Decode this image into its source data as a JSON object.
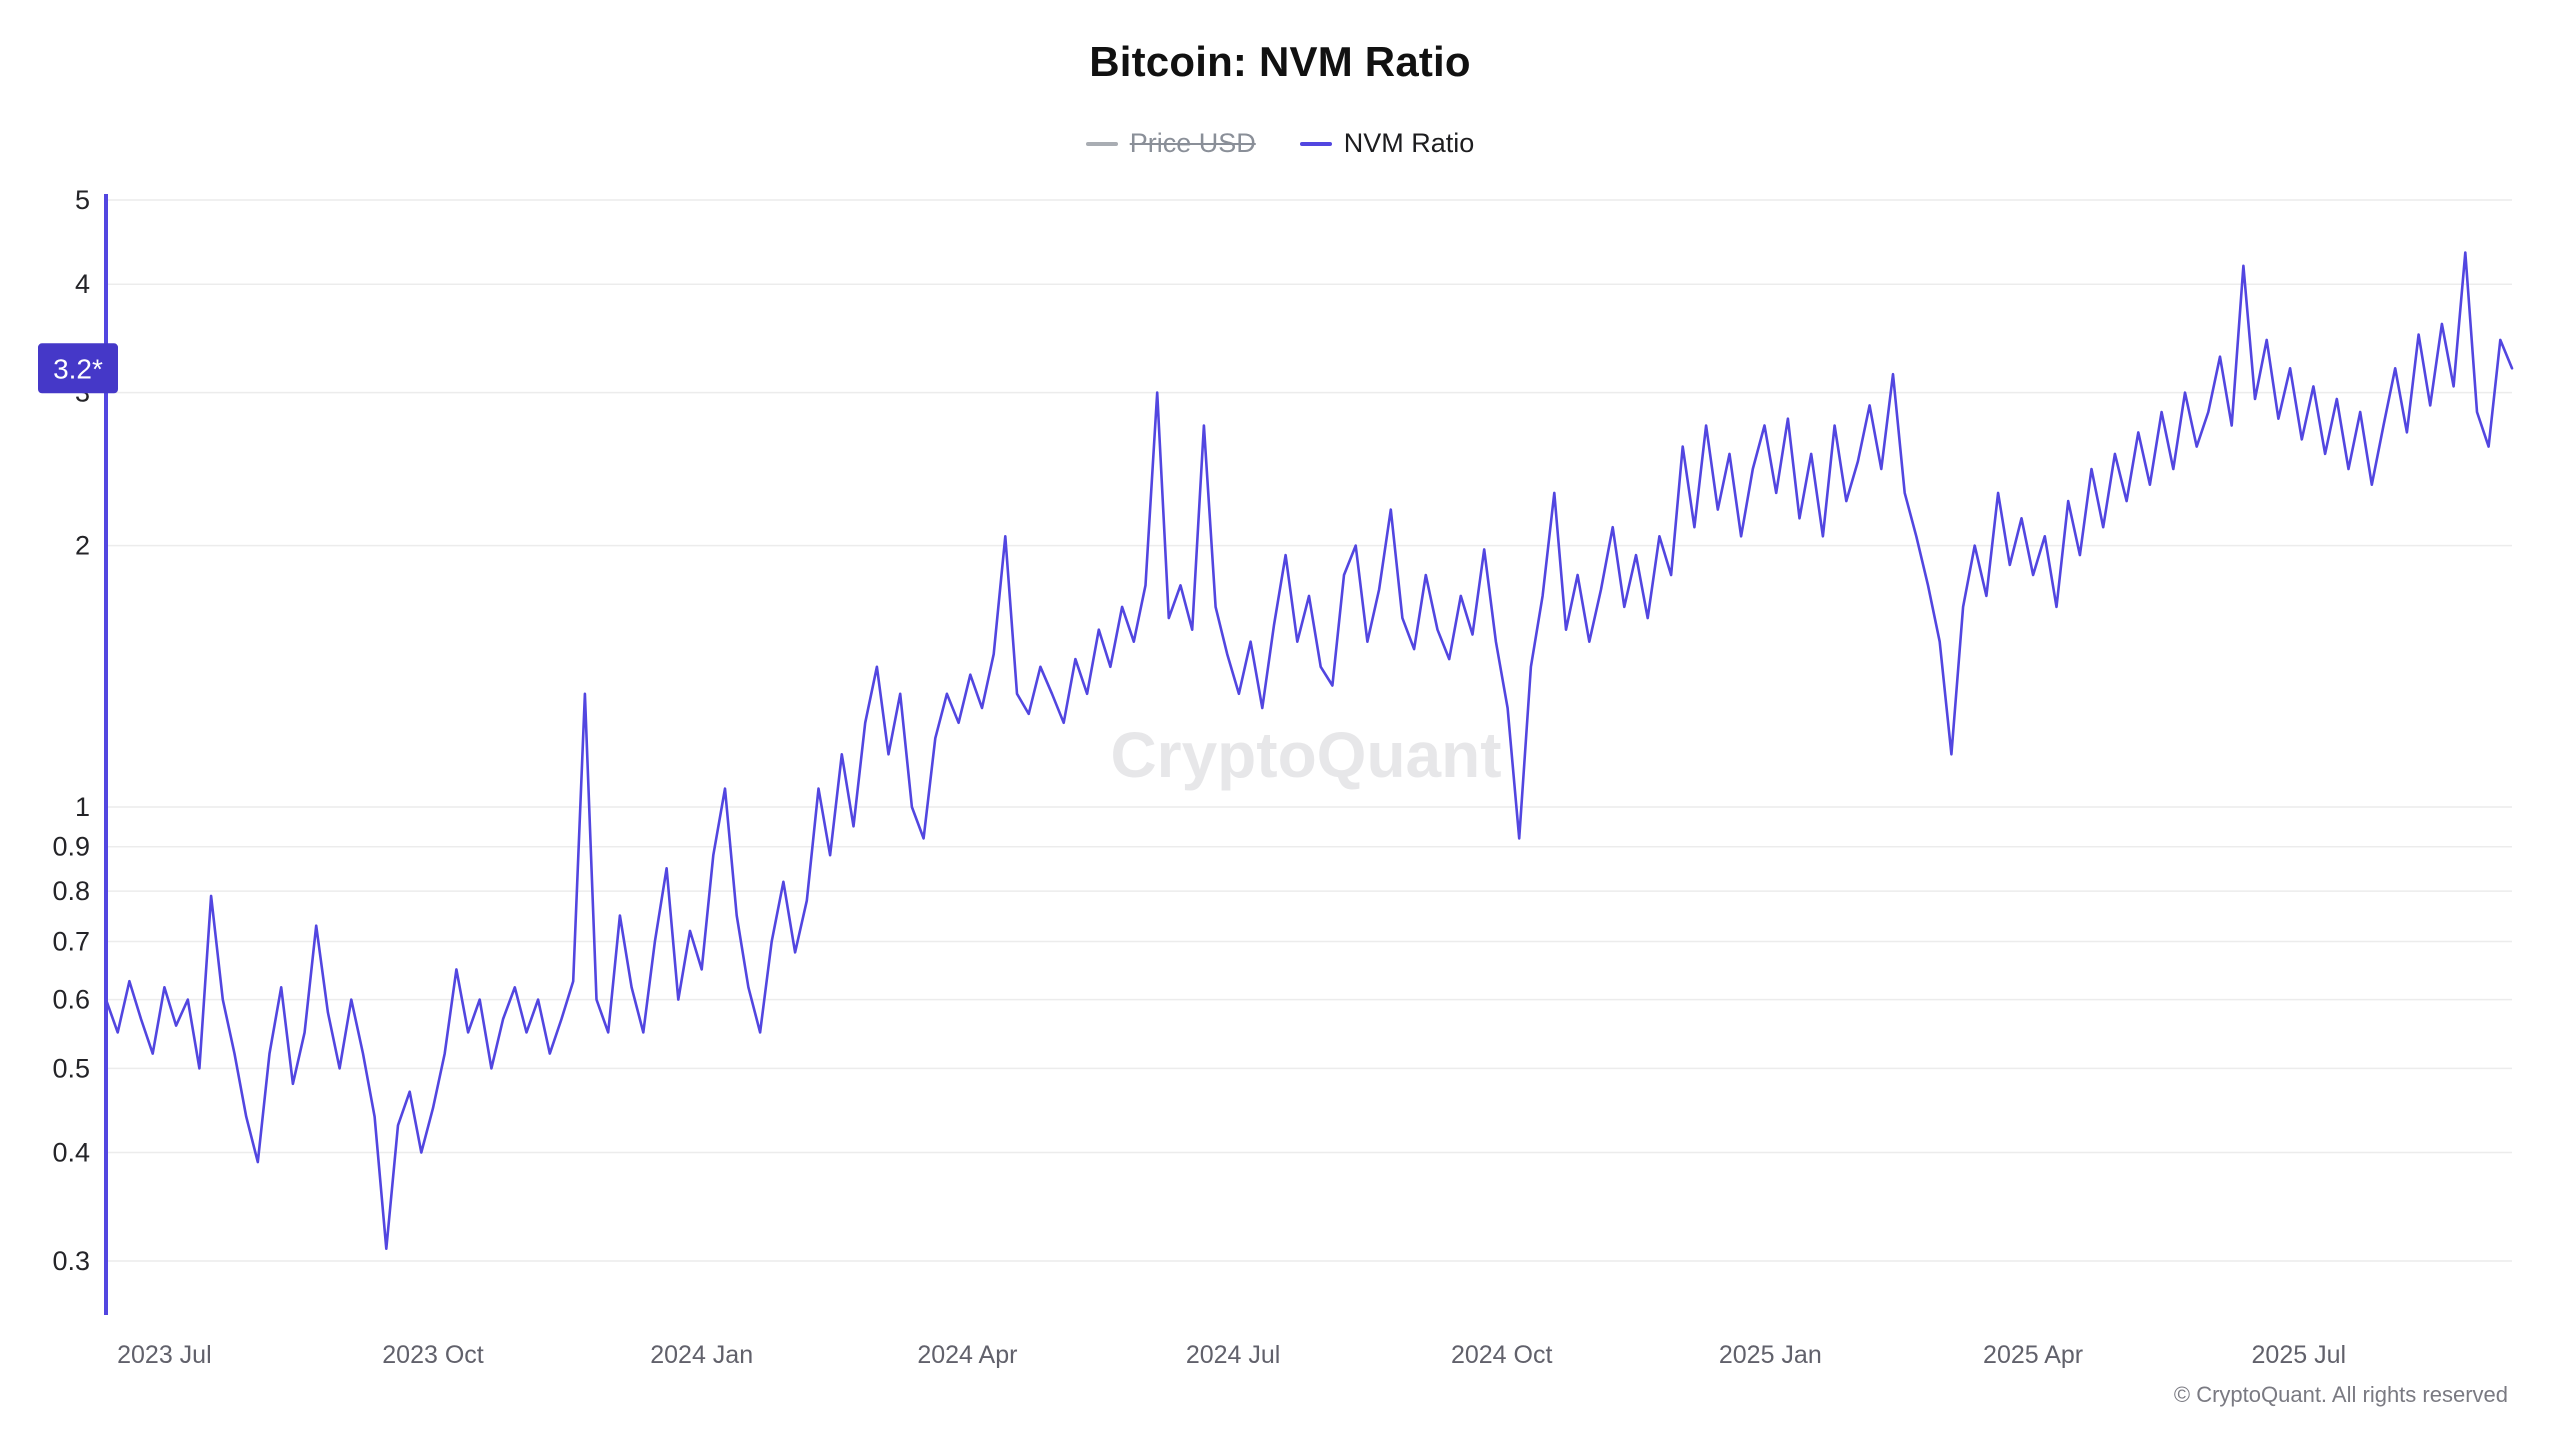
{
  "page": {
    "title": "Bitcoin: NVM Ratio",
    "watermark": "CryptoQuant",
    "footer": "© CryptoQuant. All rights reserved"
  },
  "colors": {
    "line": "#5246E0",
    "badge": "#4538C8",
    "grid": "#ececec",
    "y_label": "#242428",
    "x_label": "#61616b"
  },
  "legend": {
    "items": [
      {
        "label": "Price USD",
        "color": "#a9adb3",
        "disabled": true
      },
      {
        "label": "NVM Ratio",
        "color": "#5246E0",
        "disabled": false
      }
    ]
  },
  "chart_data": {
    "type": "line",
    "title": "Bitcoin: NVM Ratio",
    "y_scale": "log",
    "grid": "horizontal",
    "legend_position": "top",
    "y_domain": [
      0.26,
      5
    ],
    "y_ticks": [
      5,
      4,
      3,
      2,
      1,
      0.9,
      0.8,
      0.7,
      0.6,
      0.5,
      0.4,
      0.3
    ],
    "x_domain": [
      "2023-06-11",
      "2025-09-12"
    ],
    "x_ticks": [
      {
        "label": "2023 Jul",
        "date": "2023-07-01"
      },
      {
        "label": "2023 Oct",
        "date": "2023-10-01"
      },
      {
        "label": "2024 Jan",
        "date": "2024-01-01"
      },
      {
        "label": "2024 Apr",
        "date": "2024-04-01"
      },
      {
        "label": "2024 Jul",
        "date": "2024-07-01"
      },
      {
        "label": "2024 Oct",
        "date": "2024-10-01"
      },
      {
        "label": "2025 Jan",
        "date": "2025-01-01"
      },
      {
        "label": "2025 Apr",
        "date": "2025-04-01"
      },
      {
        "label": "2025 Jul",
        "date": "2025-07-01"
      }
    ],
    "last_value": 3.2,
    "last_value_label": "3.2*",
    "series": [
      {
        "name": "NVM Ratio",
        "color": "#5246E0",
        "points": [
          [
            "2023-06-11",
            0.6
          ],
          [
            "2023-06-15",
            0.55
          ],
          [
            "2023-06-19",
            0.63
          ],
          [
            "2023-06-23",
            0.57
          ],
          [
            "2023-06-27",
            0.52
          ],
          [
            "2023-07-01",
            0.62
          ],
          [
            "2023-07-05",
            0.56
          ],
          [
            "2023-07-09",
            0.6
          ],
          [
            "2023-07-13",
            0.5
          ],
          [
            "2023-07-17",
            0.79
          ],
          [
            "2023-07-21",
            0.6
          ],
          [
            "2023-07-25",
            0.52
          ],
          [
            "2023-07-29",
            0.44
          ],
          [
            "2023-08-02",
            0.39
          ],
          [
            "2023-08-06",
            0.52
          ],
          [
            "2023-08-10",
            0.62
          ],
          [
            "2023-08-14",
            0.48
          ],
          [
            "2023-08-18",
            0.55
          ],
          [
            "2023-08-22",
            0.73
          ],
          [
            "2023-08-26",
            0.58
          ],
          [
            "2023-08-30",
            0.5
          ],
          [
            "2023-09-03",
            0.6
          ],
          [
            "2023-09-07",
            0.52
          ],
          [
            "2023-09-11",
            0.44
          ],
          [
            "2023-09-15",
            0.31
          ],
          [
            "2023-09-19",
            0.43
          ],
          [
            "2023-09-23",
            0.47
          ],
          [
            "2023-09-27",
            0.4
          ],
          [
            "2023-10-01",
            0.45
          ],
          [
            "2023-10-05",
            0.52
          ],
          [
            "2023-10-09",
            0.65
          ],
          [
            "2023-10-13",
            0.55
          ],
          [
            "2023-10-17",
            0.6
          ],
          [
            "2023-10-21",
            0.5
          ],
          [
            "2023-10-25",
            0.57
          ],
          [
            "2023-10-29",
            0.62
          ],
          [
            "2023-11-02",
            0.55
          ],
          [
            "2023-11-06",
            0.6
          ],
          [
            "2023-11-10",
            0.52
          ],
          [
            "2023-11-14",
            0.57
          ],
          [
            "2023-11-18",
            0.63
          ],
          [
            "2023-11-22",
            1.35
          ],
          [
            "2023-11-26",
            0.6
          ],
          [
            "2023-11-30",
            0.55
          ],
          [
            "2023-12-04",
            0.75
          ],
          [
            "2023-12-08",
            0.62
          ],
          [
            "2023-12-12",
            0.55
          ],
          [
            "2023-12-16",
            0.7
          ],
          [
            "2023-12-20",
            0.85
          ],
          [
            "2023-12-24",
            0.6
          ],
          [
            "2023-12-28",
            0.72
          ],
          [
            "2024-01-01",
            0.65
          ],
          [
            "2024-01-05",
            0.88
          ],
          [
            "2024-01-09",
            1.05
          ],
          [
            "2024-01-13",
            0.75
          ],
          [
            "2024-01-17",
            0.62
          ],
          [
            "2024-01-21",
            0.55
          ],
          [
            "2024-01-25",
            0.7
          ],
          [
            "2024-01-29",
            0.82
          ],
          [
            "2024-02-02",
            0.68
          ],
          [
            "2024-02-06",
            0.78
          ],
          [
            "2024-02-10",
            1.05
          ],
          [
            "2024-02-14",
            0.88
          ],
          [
            "2024-02-18",
            1.15
          ],
          [
            "2024-02-22",
            0.95
          ],
          [
            "2024-02-26",
            1.25
          ],
          [
            "2024-03-01",
            1.45
          ],
          [
            "2024-03-05",
            1.15
          ],
          [
            "2024-03-09",
            1.35
          ],
          [
            "2024-03-13",
            1.0
          ],
          [
            "2024-03-17",
            0.92
          ],
          [
            "2024-03-21",
            1.2
          ],
          [
            "2024-03-25",
            1.35
          ],
          [
            "2024-03-29",
            1.25
          ],
          [
            "2024-04-02",
            1.42
          ],
          [
            "2024-04-06",
            1.3
          ],
          [
            "2024-04-10",
            1.5
          ],
          [
            "2024-04-14",
            2.05
          ],
          [
            "2024-04-18",
            1.35
          ],
          [
            "2024-04-22",
            1.28
          ],
          [
            "2024-04-26",
            1.45
          ],
          [
            "2024-04-30",
            1.35
          ],
          [
            "2024-05-04",
            1.25
          ],
          [
            "2024-05-08",
            1.48
          ],
          [
            "2024-05-12",
            1.35
          ],
          [
            "2024-05-16",
            1.6
          ],
          [
            "2024-05-20",
            1.45
          ],
          [
            "2024-05-24",
            1.7
          ],
          [
            "2024-05-28",
            1.55
          ],
          [
            "2024-06-01",
            1.8
          ],
          [
            "2024-06-05",
            3.0
          ],
          [
            "2024-06-09",
            1.65
          ],
          [
            "2024-06-13",
            1.8
          ],
          [
            "2024-06-17",
            1.6
          ],
          [
            "2024-06-21",
            2.75
          ],
          [
            "2024-06-25",
            1.7
          ],
          [
            "2024-06-29",
            1.5
          ],
          [
            "2024-07-03",
            1.35
          ],
          [
            "2024-07-07",
            1.55
          ],
          [
            "2024-07-11",
            1.3
          ],
          [
            "2024-07-15",
            1.62
          ],
          [
            "2024-07-19",
            1.95
          ],
          [
            "2024-07-23",
            1.55
          ],
          [
            "2024-07-27",
            1.75
          ],
          [
            "2024-07-31",
            1.45
          ],
          [
            "2024-08-04",
            1.38
          ],
          [
            "2024-08-08",
            1.85
          ],
          [
            "2024-08-12",
            2.0
          ],
          [
            "2024-08-16",
            1.55
          ],
          [
            "2024-08-20",
            1.78
          ],
          [
            "2024-08-24",
            2.2
          ],
          [
            "2024-08-28",
            1.65
          ],
          [
            "2024-09-01",
            1.52
          ],
          [
            "2024-09-05",
            1.85
          ],
          [
            "2024-09-09",
            1.6
          ],
          [
            "2024-09-13",
            1.48
          ],
          [
            "2024-09-17",
            1.75
          ],
          [
            "2024-09-21",
            1.58
          ],
          [
            "2024-09-25",
            1.98
          ],
          [
            "2024-09-29",
            1.55
          ],
          [
            "2024-10-03",
            1.3
          ],
          [
            "2024-10-07",
            0.92
          ],
          [
            "2024-10-11",
            1.45
          ],
          [
            "2024-10-15",
            1.75
          ],
          [
            "2024-10-19",
            2.3
          ],
          [
            "2024-10-23",
            1.6
          ],
          [
            "2024-10-27",
            1.85
          ],
          [
            "2024-10-31",
            1.55
          ],
          [
            "2024-11-04",
            1.78
          ],
          [
            "2024-11-08",
            2.1
          ],
          [
            "2024-11-12",
            1.7
          ],
          [
            "2024-11-16",
            1.95
          ],
          [
            "2024-11-20",
            1.65
          ],
          [
            "2024-11-24",
            2.05
          ],
          [
            "2024-11-28",
            1.85
          ],
          [
            "2024-12-02",
            2.6
          ],
          [
            "2024-12-06",
            2.1
          ],
          [
            "2024-12-10",
            2.75
          ],
          [
            "2024-12-14",
            2.2
          ],
          [
            "2024-12-18",
            2.55
          ],
          [
            "2024-12-22",
            2.05
          ],
          [
            "2024-12-26",
            2.45
          ],
          [
            "2024-12-30",
            2.75
          ],
          [
            "2025-01-03",
            2.3
          ],
          [
            "2025-01-07",
            2.8
          ],
          [
            "2025-01-11",
            2.15
          ],
          [
            "2025-01-15",
            2.55
          ],
          [
            "2025-01-19",
            2.05
          ],
          [
            "2025-01-23",
            2.75
          ],
          [
            "2025-01-27",
            2.25
          ],
          [
            "2025-01-31",
            2.5
          ],
          [
            "2025-02-04",
            2.9
          ],
          [
            "2025-02-08",
            2.45
          ],
          [
            "2025-02-12",
            3.15
          ],
          [
            "2025-02-16",
            2.3
          ],
          [
            "2025-02-20",
            2.05
          ],
          [
            "2025-02-24",
            1.8
          ],
          [
            "2025-02-28",
            1.55
          ],
          [
            "2025-03-04",
            1.15
          ],
          [
            "2025-03-08",
            1.7
          ],
          [
            "2025-03-12",
            2.0
          ],
          [
            "2025-03-16",
            1.75
          ],
          [
            "2025-03-20",
            2.3
          ],
          [
            "2025-03-24",
            1.9
          ],
          [
            "2025-03-28",
            2.15
          ],
          [
            "2025-04-01",
            1.85
          ],
          [
            "2025-04-05",
            2.05
          ],
          [
            "2025-04-09",
            1.7
          ],
          [
            "2025-04-13",
            2.25
          ],
          [
            "2025-04-17",
            1.95
          ],
          [
            "2025-04-21",
            2.45
          ],
          [
            "2025-04-25",
            2.1
          ],
          [
            "2025-04-29",
            2.55
          ],
          [
            "2025-05-03",
            2.25
          ],
          [
            "2025-05-07",
            2.7
          ],
          [
            "2025-05-11",
            2.35
          ],
          [
            "2025-05-15",
            2.85
          ],
          [
            "2025-05-19",
            2.45
          ],
          [
            "2025-05-23",
            3.0
          ],
          [
            "2025-05-27",
            2.6
          ],
          [
            "2025-05-31",
            2.85
          ],
          [
            "2025-06-04",
            3.3
          ],
          [
            "2025-06-08",
            2.75
          ],
          [
            "2025-06-12",
            4.2
          ],
          [
            "2025-06-16",
            2.95
          ],
          [
            "2025-06-20",
            3.45
          ],
          [
            "2025-06-24",
            2.8
          ],
          [
            "2025-06-28",
            3.2
          ],
          [
            "2025-07-02",
            2.65
          ],
          [
            "2025-07-06",
            3.05
          ],
          [
            "2025-07-10",
            2.55
          ],
          [
            "2025-07-14",
            2.95
          ],
          [
            "2025-07-18",
            2.45
          ],
          [
            "2025-07-22",
            2.85
          ],
          [
            "2025-07-26",
            2.35
          ],
          [
            "2025-07-30",
            2.75
          ],
          [
            "2025-08-03",
            3.2
          ],
          [
            "2025-08-07",
            2.7
          ],
          [
            "2025-08-11",
            3.5
          ],
          [
            "2025-08-15",
            2.9
          ],
          [
            "2025-08-19",
            3.6
          ],
          [
            "2025-08-23",
            3.05
          ],
          [
            "2025-08-27",
            4.35
          ],
          [
            "2025-08-31",
            2.85
          ],
          [
            "2025-09-04",
            2.6
          ],
          [
            "2025-09-08",
            3.45
          ],
          [
            "2025-09-12",
            3.2
          ]
        ]
      }
    ]
  }
}
